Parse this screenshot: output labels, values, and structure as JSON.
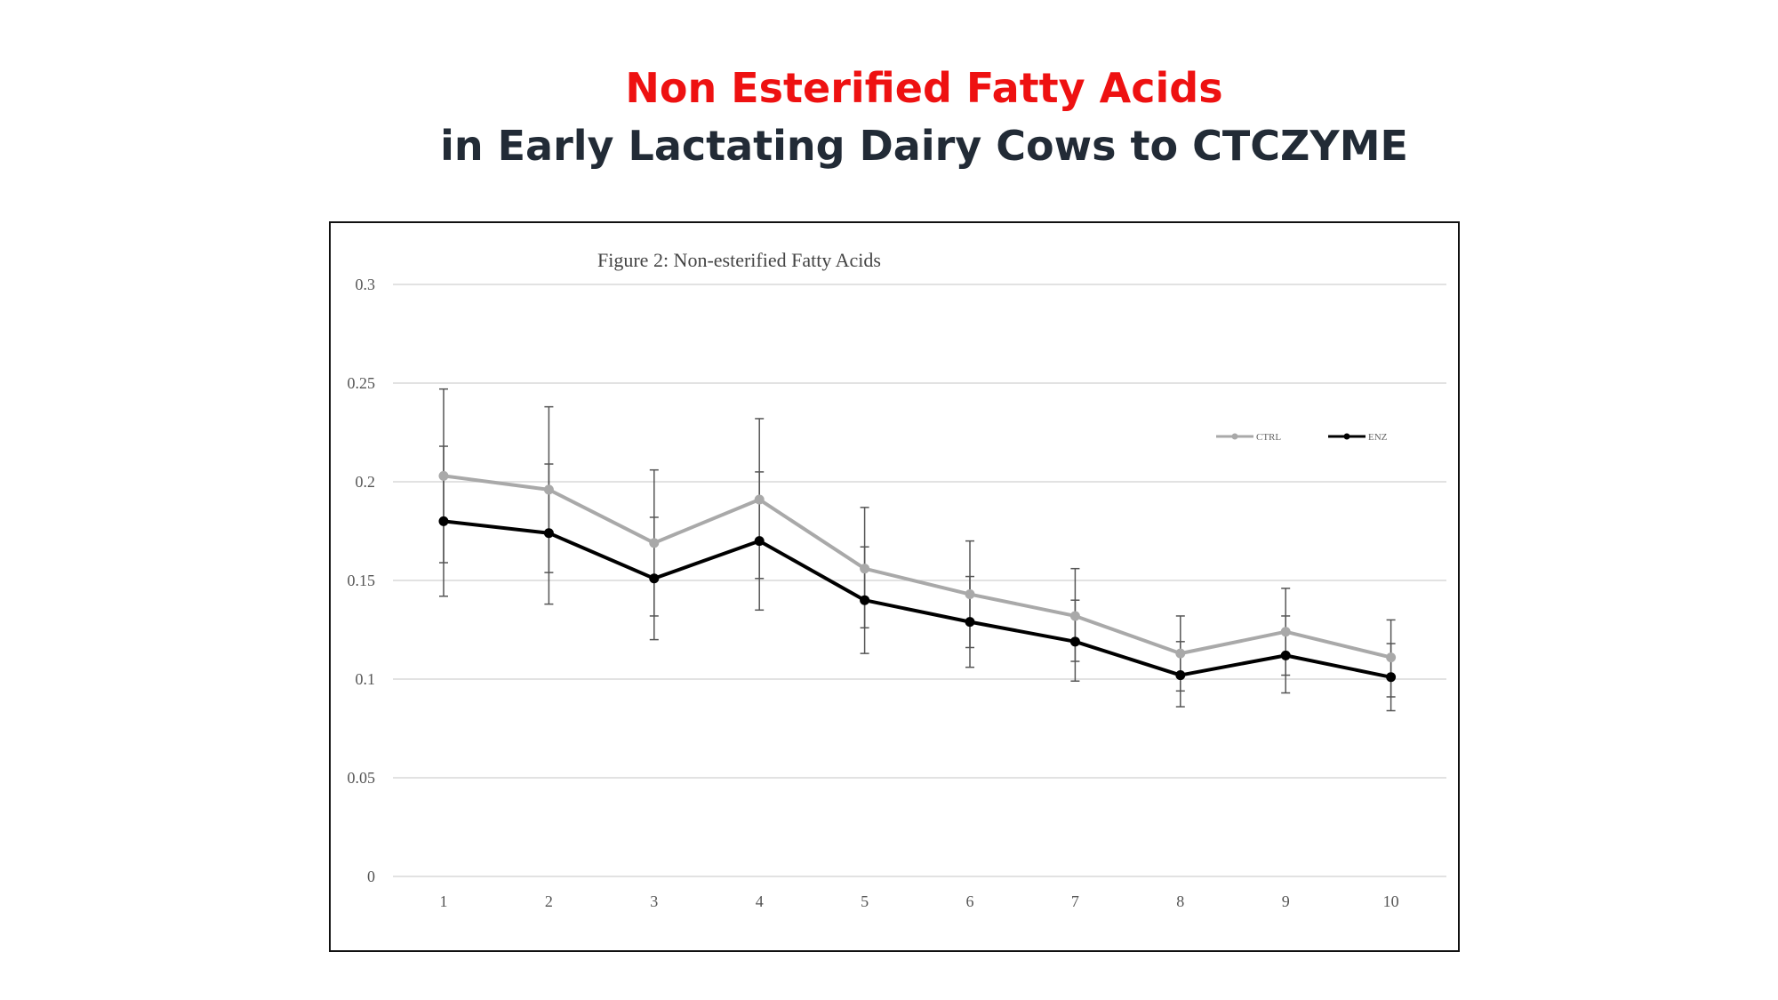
{
  "slide": {
    "title_line1": "Non Esterified Fatty Acids",
    "title_line2": "in Early Lactating Dairy Cows to CTCZYME"
  },
  "colors": {
    "title_accent": "#ee1111",
    "title_dark": "#222b36",
    "ctrl": "#a9a9a9",
    "enz": "#000000",
    "grid": "#d9d9d9",
    "error_bar": "#555555"
  },
  "chart_data": {
    "type": "line",
    "title": "Figure 2: Non-esterified Fatty Acids",
    "xlabel": "",
    "ylabel": "",
    "ylim": [
      0,
      0.3
    ],
    "yticks": [
      "0",
      "0.05",
      "0.1",
      "0.15",
      "0.2",
      "0.25",
      "0.3"
    ],
    "yticks_values": [
      0,
      0.05,
      0.1,
      0.15,
      0.2,
      0.25,
      0.3
    ],
    "categories": [
      "1",
      "2",
      "3",
      "4",
      "5",
      "6",
      "7",
      "8",
      "9",
      "10"
    ],
    "grid": true,
    "legend_position": "top-right",
    "series": [
      {
        "name": "CTRL",
        "color_key": "ctrl",
        "values": [
          0.203,
          0.196,
          0.169,
          0.191,
          0.156,
          0.143,
          0.132,
          0.113,
          0.124,
          0.111
        ],
        "err_low": [
          0.159,
          0.154,
          0.132,
          0.151,
          0.126,
          0.116,
          0.109,
          0.094,
          0.102,
          0.091
        ],
        "err_high": [
          0.247,
          0.238,
          0.206,
          0.232,
          0.187,
          0.17,
          0.156,
          0.132,
          0.146,
          0.13
        ]
      },
      {
        "name": "ENZ",
        "color_key": "enz",
        "values": [
          0.18,
          0.174,
          0.151,
          0.17,
          0.14,
          0.129,
          0.119,
          0.102,
          0.112,
          0.101
        ],
        "err_low": [
          0.142,
          0.138,
          0.12,
          0.135,
          0.113,
          0.106,
          0.099,
          0.086,
          0.093,
          0.084
        ],
        "err_high": [
          0.218,
          0.209,
          0.182,
          0.205,
          0.167,
          0.152,
          0.14,
          0.119,
          0.132,
          0.118
        ]
      }
    ]
  }
}
